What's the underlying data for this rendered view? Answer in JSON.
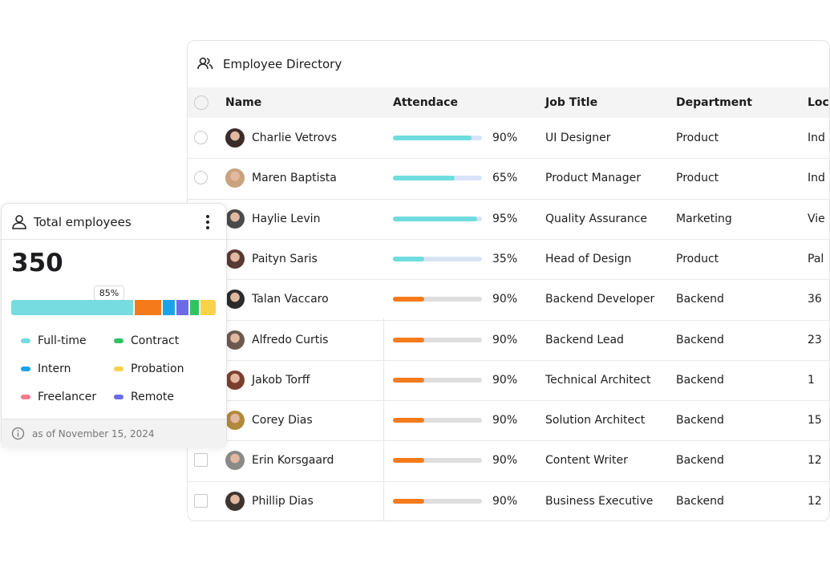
{
  "directory": {
    "title": "Employee Directory",
    "columns": [
      "Name",
      "Attendace",
      "Job Title",
      "Department",
      "Loc"
    ],
    "rows": [
      {
        "name": "Charlie Vetrovs",
        "attendance": "90%",
        "job_title": "UI Designer",
        "department": "Product",
        "location": "Ind"
      },
      {
        "name": "Maren Baptista",
        "attendance": "65%",
        "job_title": "Product Manager",
        "department": "Product",
        "location": "Ind"
      },
      {
        "name": "Haylie Levin",
        "attendance": "95%",
        "job_title": "Quality Assurance",
        "department": "Marketing",
        "location": "Vie"
      },
      {
        "name": "Paityn Saris",
        "attendance": "35%",
        "job_title": "Head of Design",
        "department": "Product",
        "location": "Pal"
      },
      {
        "name": "Talan Vaccaro",
        "attendance": "90%",
        "job_title": "Backend Developer",
        "department": "Backend",
        "location": "36"
      },
      {
        "name": "Alfredo Curtis",
        "attendance": "90%",
        "job_title": "Backend Lead",
        "department": "Backend",
        "location": "23"
      },
      {
        "name": "Jakob Torff",
        "attendance": "90%",
        "job_title": "Technical Architect",
        "department": "Backend",
        "location": "1"
      },
      {
        "name": "Corey Dias",
        "attendance": "90%",
        "job_title": "Solution Architect",
        "department": "Backend",
        "location": "15"
      },
      {
        "name": "Erin Korsgaard",
        "attendance": "90%",
        "job_title": "Content Writer",
        "department": "Backend",
        "location": "12"
      },
      {
        "name": "Phillip Dias",
        "attendance": "90%",
        "job_title": "Business Executive",
        "department": "Backend",
        "location": "12"
      }
    ]
  },
  "summary": {
    "title": "Total employees",
    "total": 350,
    "highlight": "85%",
    "legend": [
      "Full-time",
      "Contract",
      "Intern",
      "Probation",
      "Freelancer",
      "Remote"
    ],
    "footnote": "as of November 15, 2024"
  }
}
